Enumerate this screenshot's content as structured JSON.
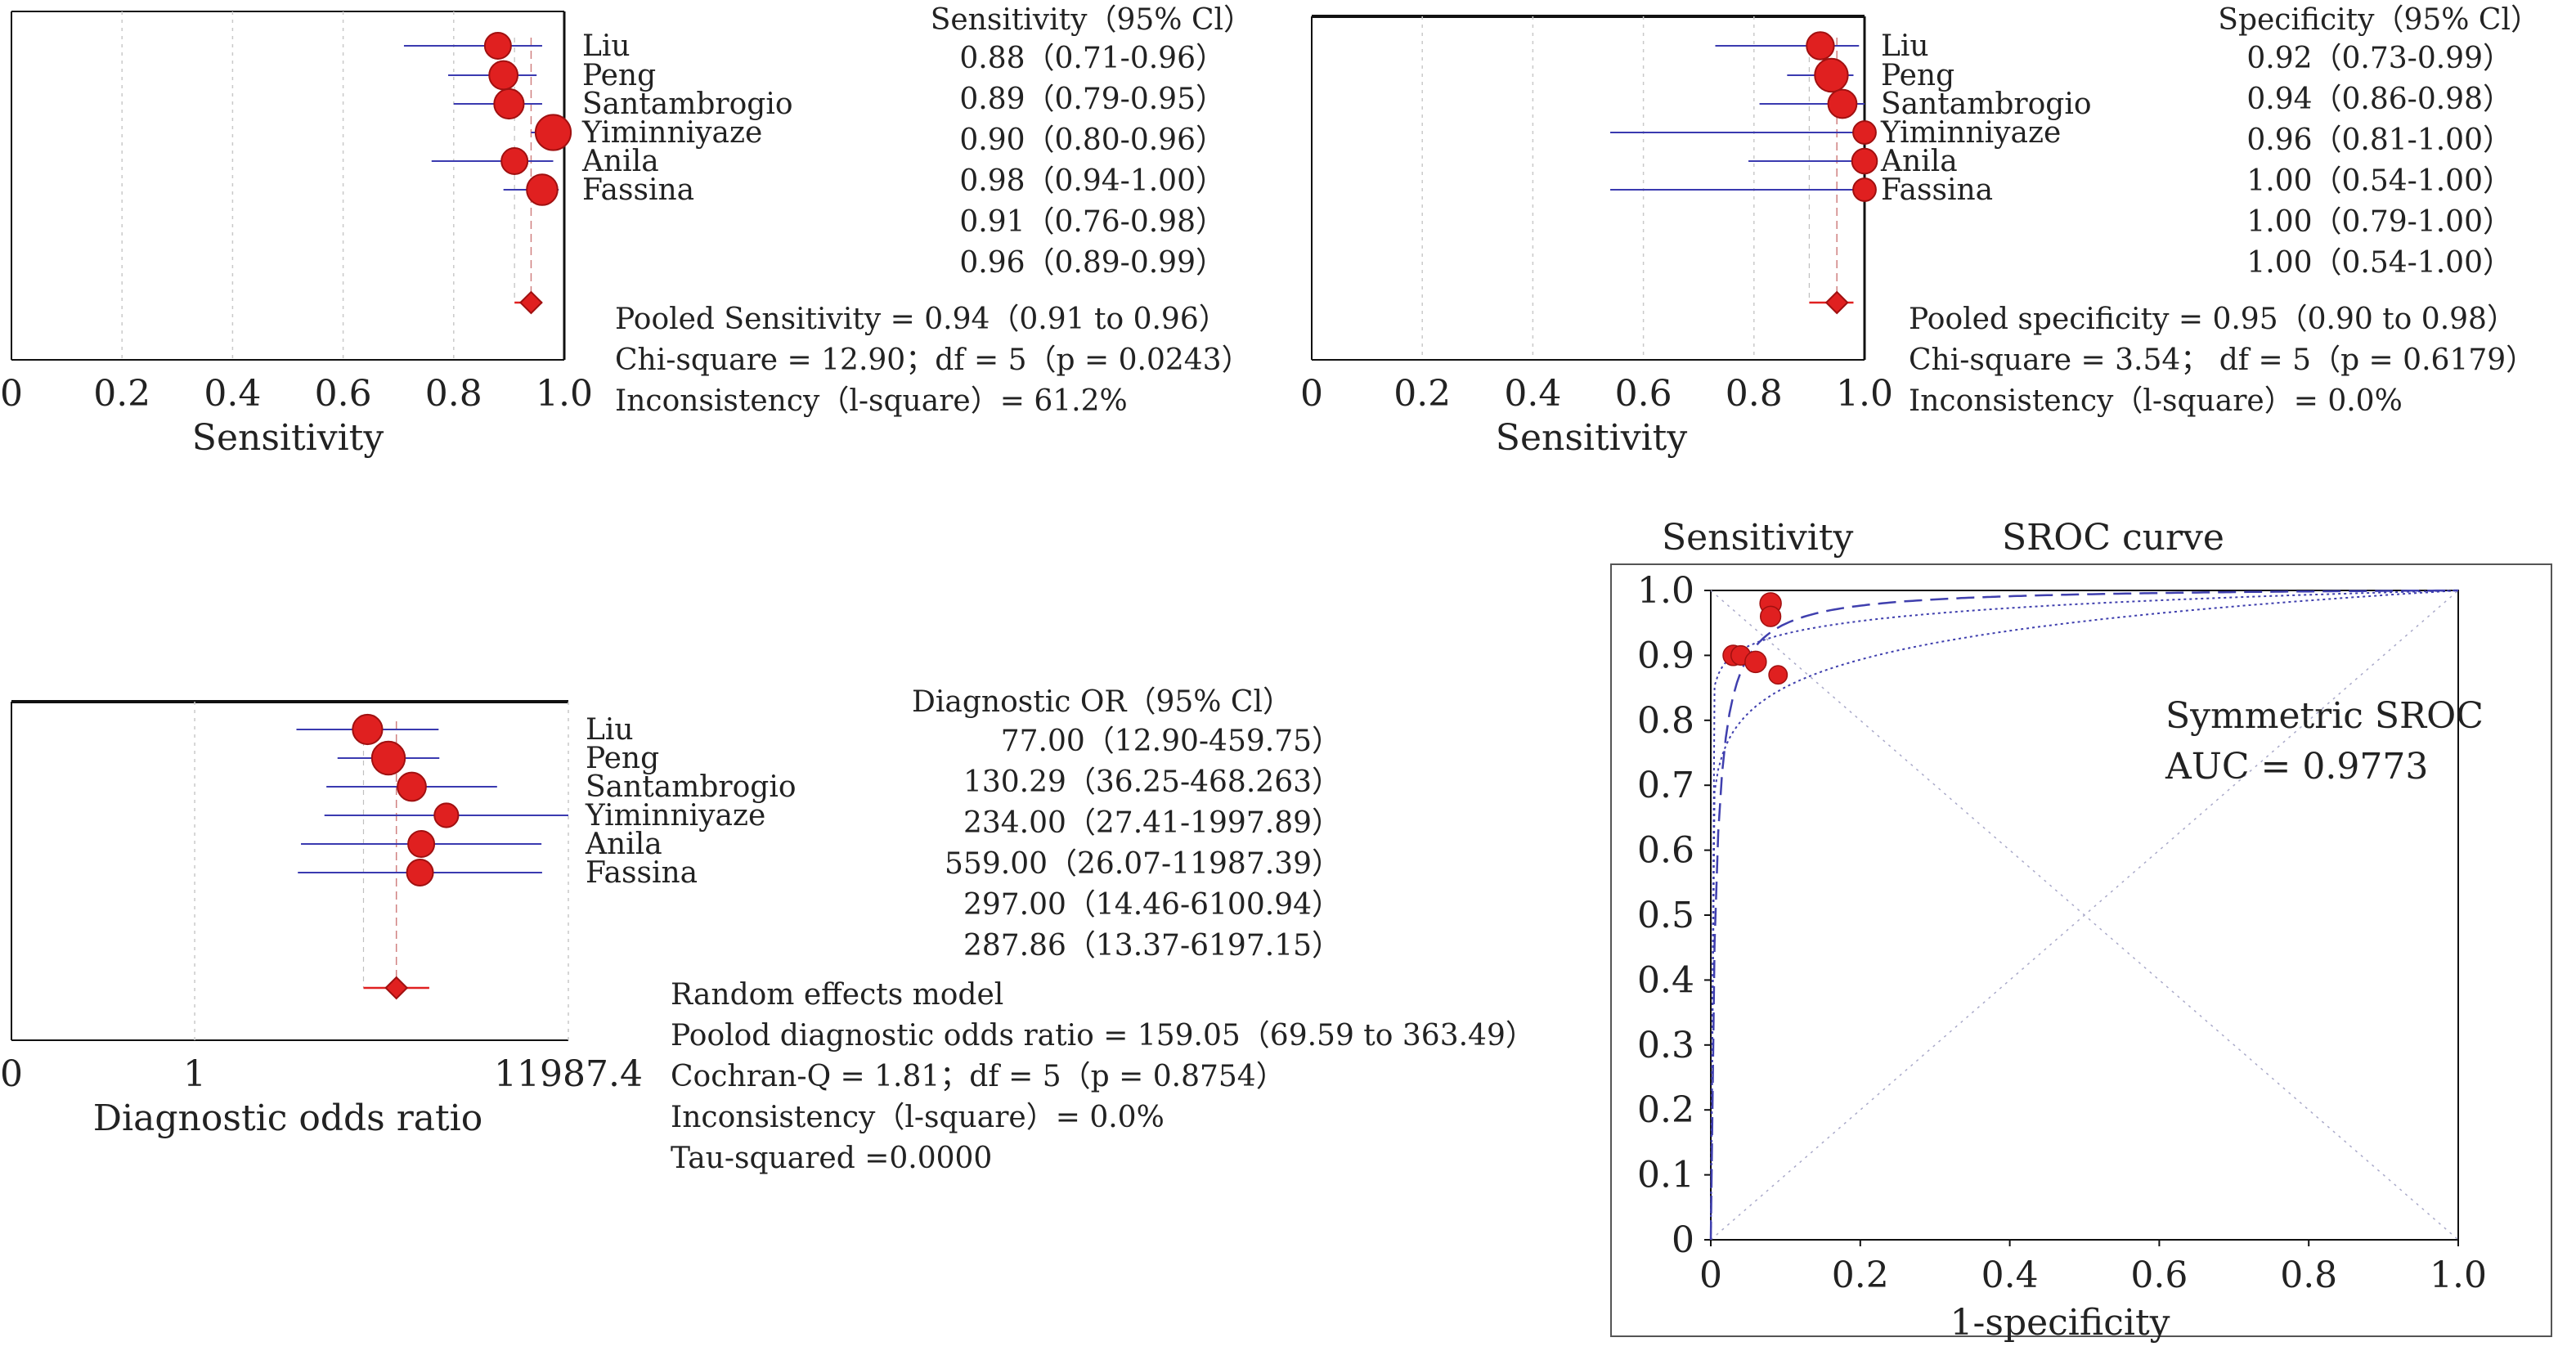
{
  "colors": {
    "marker": "#e02020",
    "marker_edge": "#a01010",
    "ci": "#3a3ab0",
    "axis": "#111111",
    "grid": "#c9c9c9",
    "sroc_curve": "#3f3fae"
  },
  "chart_data": [
    {
      "type": "forest",
      "panel": "sensitivity",
      "xlabel": "Sensitivity",
      "xlim": [
        0,
        1
      ],
      "xticks": [
        "0",
        "0.2",
        "0.4",
        "0.6",
        "0.8",
        "1.0"
      ],
      "xtick_values": [
        0,
        0.2,
        0.4,
        0.6,
        0.8,
        1.0
      ],
      "column_header": "Sensitivity（95% Cl）",
      "studies": [
        "Liu",
        "Peng",
        "Santambrogio",
        "Yiminniyaze",
        "Anila",
        "Fassina"
      ],
      "estimates": [
        0.88,
        0.89,
        0.9,
        0.98,
        0.91,
        0.96
      ],
      "lower": [
        0.71,
        0.79,
        0.8,
        0.94,
        0.76,
        0.89
      ],
      "upper": [
        0.96,
        0.95,
        0.96,
        1.0,
        0.98,
        0.99
      ],
      "weights": [
        1.0,
        1.2,
        1.3,
        1.8,
        1.0,
        1.4
      ],
      "ci_texts": [
        "0.88（0.71-0.96）",
        "0.89（0.79-0.95）",
        "0.90（0.80-0.96）",
        "0.98（0.94-1.00）",
        "0.91（0.76-0.98）",
        "0.96（0.89-0.99）"
      ],
      "pooled": {
        "estimate": 0.94,
        "lower": 0.91,
        "upper": 0.96
      },
      "stats": [
        "Pooled Sensitivity = 0.94（0.91 to 0.96）",
        "Chi-square = 12.90；df = 5（p = 0.0243）",
        "Inconsistency（l-square）= 61.2%"
      ]
    },
    {
      "type": "forest",
      "panel": "specificity",
      "xlabel": "Sensitivity",
      "xlim": [
        0,
        1
      ],
      "xticks": [
        "0",
        "0.2",
        "0.4",
        "0.6",
        "0.8",
        "1.0"
      ],
      "xtick_values": [
        0,
        0.2,
        0.4,
        0.6,
        0.8,
        1.0
      ],
      "column_header": "Specificity（95% Cl）",
      "studies": [
        "Liu",
        "Peng",
        "Santambrogio",
        "Yiminniyaze",
        "Anila",
        "Fassina"
      ],
      "estimates": [
        0.92,
        0.94,
        0.96,
        1.0,
        1.0,
        1.0
      ],
      "lower": [
        0.73,
        0.86,
        0.81,
        0.54,
        0.79,
        0.54
      ],
      "upper": [
        0.99,
        0.98,
        1.0,
        1.0,
        1.0,
        1.0
      ],
      "weights": [
        1.1,
        1.6,
        1.2,
        0.7,
        0.9,
        0.7
      ],
      "ci_texts": [
        "0.92（0.73-0.99）",
        "0.94（0.86-0.98）",
        "0.96（0.81-1.00）",
        "1.00（0.54-1.00）",
        "1.00（0.79-1.00）",
        "1.00（0.54-1.00）"
      ],
      "pooled": {
        "estimate": 0.95,
        "lower": 0.9,
        "upper": 0.98
      },
      "stats": [
        "Pooled specificity = 0.95（0.90 to 0.98）",
        "Chi-square = 3.54； df = 5（p = 0.6179）",
        "Inconsistency（l-square）= 0.0%"
      ]
    },
    {
      "type": "forest",
      "panel": "diagnostic_odds_ratio",
      "scale": "log",
      "xlabel": "Diagnostic odds ratio",
      "xlim": [
        0.01,
        11987.4
      ],
      "xticks": [
        "0",
        "1",
        "11987.4"
      ],
      "column_header": "Diagnostic OR（95% Cl）",
      "studies": [
        "Liu",
        "Peng",
        "Santambrogio",
        "Yiminniyaze",
        "Anila",
        "Fassina"
      ],
      "estimates": [
        77.0,
        130.29,
        234.0,
        559.0,
        297.0,
        287.86
      ],
      "lower": [
        12.9,
        36.25,
        27.41,
        26.07,
        14.46,
        13.37
      ],
      "upper": [
        459.75,
        468.263,
        1997.89,
        11987.39,
        6100.94,
        6197.15
      ],
      "weights": [
        1.3,
        1.6,
        1.2,
        0.8,
        1.0,
        1.0
      ],
      "ci_texts": [
        "77.00（12.90-459.75）",
        "130.29（36.25-468.263）",
        "234.00（27.41-1997.89）",
        "559.00（26.07-11987.39）",
        "297.00（14.46-6100.94）",
        "287.86（13.37-6197.15）"
      ],
      "pooled": {
        "estimate": 159.05,
        "lower": 69.59,
        "upper": 363.49
      },
      "stats": [
        "Random effects model",
        "Poolod diagnostic odds ratio = 159.05（69.59 to 363.49）",
        "Cochran-Q = 1.81；df = 5（p = 0.8754）",
        "Inconsistency（l-square）= 0.0%",
        "Tau-squared =0.0000"
      ]
    },
    {
      "type": "scatter",
      "panel": "sroc",
      "title": "SROC curve",
      "ylabel": "Sensitivity",
      "xlabel": "1-specificity",
      "xlim": [
        0,
        1
      ],
      "ylim": [
        0,
        1
      ],
      "xticks": [
        "0",
        "0.2",
        "0.4",
        "0.6",
        "0.8",
        "1.0"
      ],
      "xtick_values": [
        0,
        0.2,
        0.4,
        0.6,
        0.8,
        1.0
      ],
      "yticks": [
        "0",
        "0.1",
        "0.2",
        "0.3",
        "0.4",
        "0.5",
        "0.6",
        "0.7",
        "0.8",
        "0.9",
        "1.0"
      ],
      "ytick_values": [
        0,
        0.1,
        0.2,
        0.3,
        0.4,
        0.5,
        0.6,
        0.7,
        0.8,
        0.9,
        1.0
      ],
      "points": [
        {
          "x": 0.08,
          "y": 0.98,
          "size": 1.0
        },
        {
          "x": 0.08,
          "y": 0.96,
          "size": 0.9
        },
        {
          "x": 0.03,
          "y": 0.9,
          "size": 0.9
        },
        {
          "x": 0.04,
          "y": 0.9,
          "size": 0.8
        },
        {
          "x": 0.06,
          "y": 0.89,
          "size": 1.0
        },
        {
          "x": 0.09,
          "y": 0.87,
          "size": 0.7
        }
      ],
      "auc_label": "Symmetric SROC",
      "auc_text": "AUC = 0.9773",
      "auc": 0.9773
    }
  ]
}
